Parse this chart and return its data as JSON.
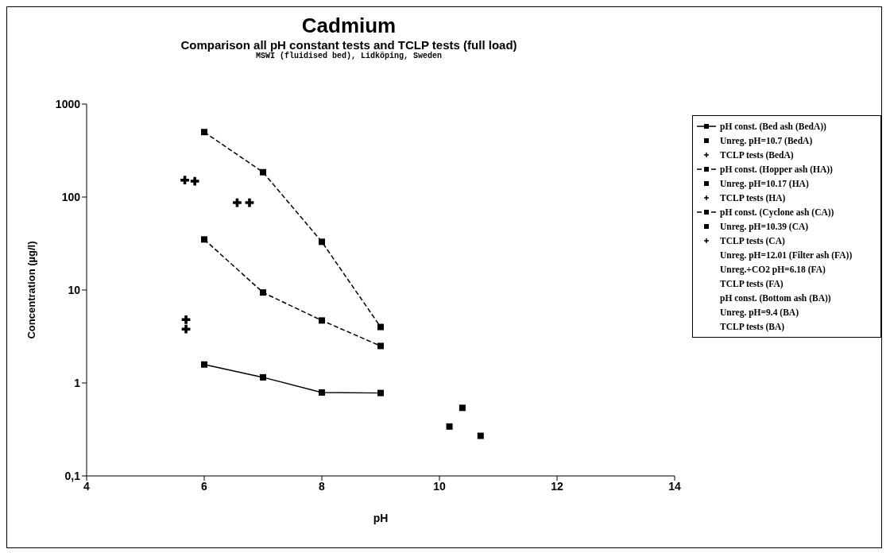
{
  "chart_data": {
    "type": "scatter",
    "title": "Cadmium",
    "subtitle": "Comparison all pH constant tests and TCLP tests (full load)",
    "annotations": [
      "MSWI (fluidised bed), Lidköping, Sweden"
    ],
    "xlabel": "pH",
    "ylabel": "Concentration (µg/l)",
    "log": "y",
    "grid": false,
    "legend": "right",
    "xlim": [
      4,
      14
    ],
    "xticks": [
      4,
      6,
      8,
      10,
      12,
      14
    ],
    "ylim": [
      0.1,
      1000
    ],
    "yticks": [
      {
        "value": 0.1,
        "label": "0,1"
      },
      1,
      10,
      100,
      1000
    ],
    "series": [
      {
        "name": "pH const. (Bed ash (BedA))",
        "type": "line",
        "marker": "square",
        "line_style": "solid",
        "color": "#000000",
        "x": [
          6,
          7,
          8,
          9
        ],
        "values": [
          1.58,
          1.15,
          0.79,
          0.78
        ]
      },
      {
        "name": "Unreg. pH=10.7 (BedA)",
        "type": "scatter",
        "marker": "square",
        "color": "#000000",
        "x": [
          10.7
        ],
        "values": [
          0.27
        ]
      },
      {
        "name": "TCLP tests (BedA)",
        "type": "scatter",
        "marker": "cross",
        "color": "#000000",
        "x": [
          5.67,
          5.84
        ],
        "values": [
          152,
          148
        ]
      },
      {
        "name": "pH const. (Hopper ash (HA))",
        "type": "line",
        "marker": "square",
        "line_style": "dashed",
        "color": "#000000",
        "x": [
          6,
          7,
          8,
          9
        ],
        "values": [
          500,
          185,
          33,
          4
        ]
      },
      {
        "name": "Unreg. pH=10.17 (HA)",
        "type": "scatter",
        "marker": "square",
        "color": "#000000",
        "x": [
          10.17
        ],
        "values": [
          0.34
        ]
      },
      {
        "name": "TCLP tests (HA)",
        "type": "scatter",
        "marker": "cross",
        "color": "#000000",
        "x": [
          6.56,
          6.77
        ],
        "values": [
          87,
          87
        ]
      },
      {
        "name": "pH const. (Cyclone ash (CA))",
        "type": "line",
        "marker": "square",
        "line_style": "dashed",
        "color": "#000000",
        "x": [
          6,
          7,
          8,
          9
        ],
        "values": [
          35,
          9.4,
          4.7,
          2.5
        ]
      },
      {
        "name": "Unreg. pH=10.39 (CA)",
        "type": "scatter",
        "marker": "square",
        "color": "#000000",
        "x": [
          10.39
        ],
        "values": [
          0.54
        ]
      },
      {
        "name": "TCLP tests (CA)",
        "type": "scatter",
        "marker": "cross",
        "color": "#000000",
        "x": [
          5.69,
          5.69
        ],
        "values": [
          4.8,
          3.8
        ]
      },
      {
        "name": "Unreg. pH=12.01 (Filter ash (FA))",
        "type": "scatter",
        "marker": "none"
      },
      {
        "name": "Unreg.+CO2 pH=6.18 (FA)",
        "type": "scatter",
        "marker": "none"
      },
      {
        "name": "TCLP tests (FA)",
        "type": "scatter",
        "marker": "none"
      },
      {
        "name": "pH const. (Bottom ash (BA))",
        "type": "scatter",
        "marker": "none"
      },
      {
        "name": "Unreg. pH=9.4 (BA)",
        "type": "scatter",
        "marker": "none"
      },
      {
        "name": "TCLP tests (BA)",
        "type": "scatter",
        "marker": "none"
      }
    ]
  }
}
